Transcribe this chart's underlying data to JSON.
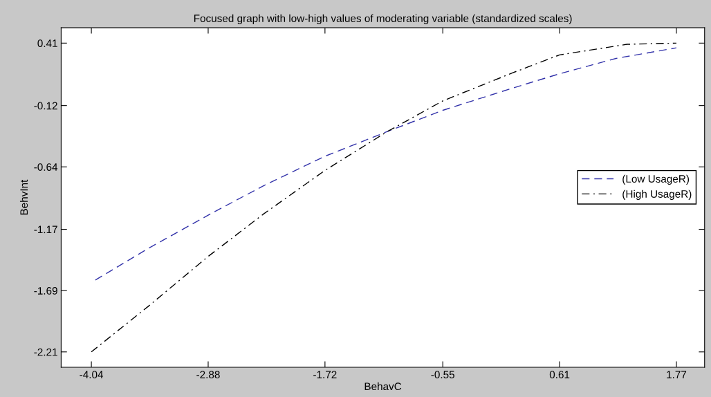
{
  "chart_data": {
    "type": "line",
    "title": "Focused graph with low-high values of moderating variable (standardized scales)",
    "xlabel": "BehavC",
    "ylabel": "BehvInt",
    "x": [
      -4.0,
      -3.47,
      -2.88,
      -2.33,
      -1.72,
      -1.1,
      -0.55,
      0.15,
      0.61,
      1.17,
      1.77
    ],
    "series": [
      {
        "name": "(Low UsageR)",
        "color": "#3333aa",
        "line_style": "dashed",
        "values": [
          -1.6,
          -1.33,
          -1.05,
          -0.8,
          -0.55,
          -0.34,
          -0.16,
          0.03,
          0.15,
          0.28,
          0.37
        ]
      },
      {
        "name": "(High UsageR)",
        "color": "#000000",
        "line_style": "dashdot",
        "x": [
          -4.04,
          -3.47,
          -2.88,
          -2.33,
          -1.72,
          -1.1,
          -0.55,
          0.15,
          0.61,
          1.28,
          1.77
        ],
        "values": [
          -2.21,
          -1.82,
          -1.4,
          -1.04,
          -0.67,
          -0.34,
          -0.08,
          0.16,
          0.31,
          0.4,
          0.41
        ]
      }
    ],
    "xlim": [
      -4.34,
      2.05
    ],
    "ylim": [
      -2.34,
      0.54
    ],
    "xticks": [
      -4.04,
      -2.88,
      -1.72,
      -0.55,
      0.61,
      1.77
    ],
    "yticks": [
      -2.21,
      -1.69,
      -1.17,
      -0.64,
      -0.12,
      0.41
    ],
    "grid": false,
    "legend": "right"
  }
}
